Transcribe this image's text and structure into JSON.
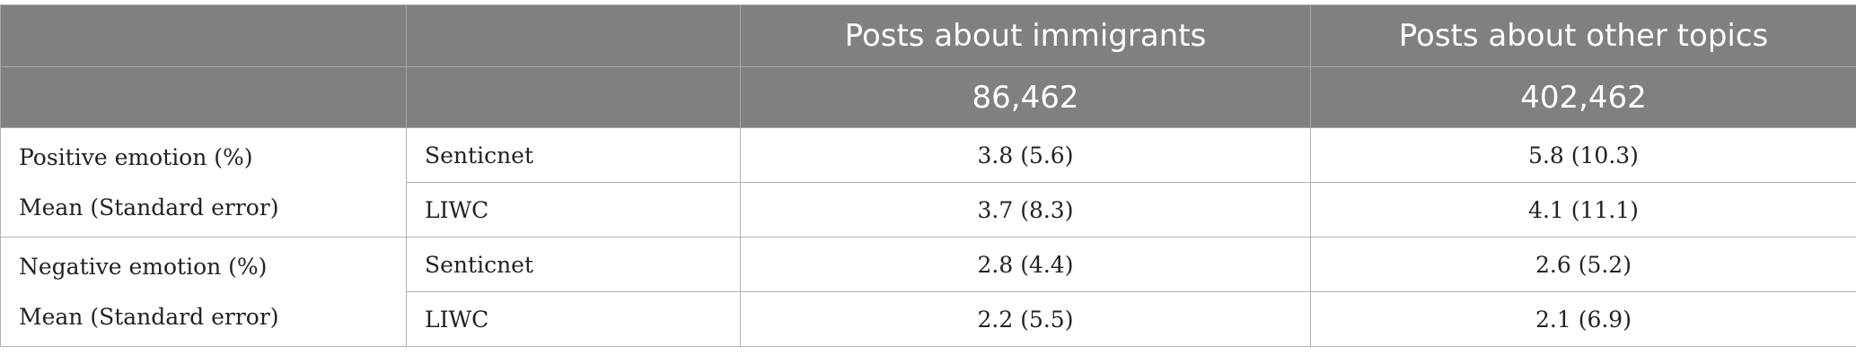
{
  "header": {
    "row1": [
      "",
      "",
      "Posts about immigrants",
      "Posts about other topics"
    ],
    "row2": [
      "",
      "",
      "86,462",
      "402,462"
    ]
  },
  "groups": [
    {
      "label_line1": "Positive emotion (%)",
      "label_line2": "Mean (Standard error)",
      "rows": [
        {
          "method": "Senticnet",
          "immigrants": "3.8 (5.6)",
          "other": "5.8 (10.3)"
        },
        {
          "method": "LIWC",
          "immigrants": "3.7 (8.3)",
          "other": "4.1 (11.1)"
        }
      ]
    },
    {
      "label_line1": "Negative emotion (%)",
      "label_line2": "Mean (Standard error)",
      "rows": [
        {
          "method": "Senticnet",
          "immigrants": "2.8 (4.4)",
          "other": "2.6 (5.2)"
        },
        {
          "method": "LIWC",
          "immigrants": "2.2 (5.5)",
          "other": "2.1 (6.9)"
        }
      ]
    }
  ]
}
